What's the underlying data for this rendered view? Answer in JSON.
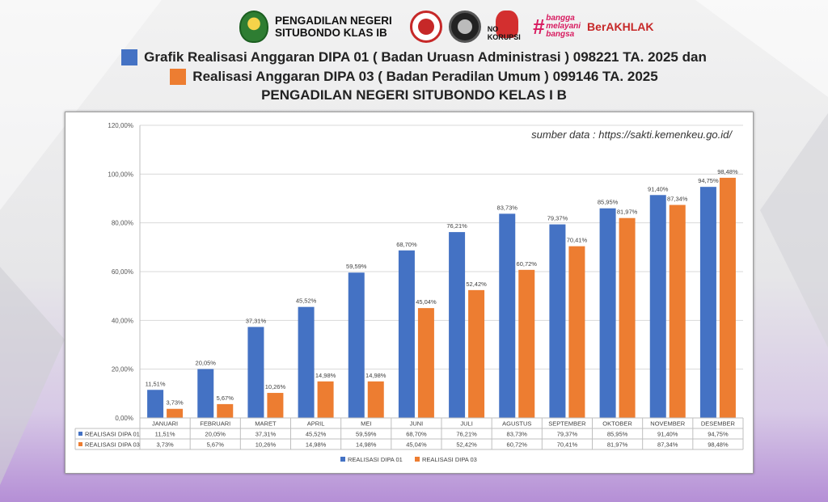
{
  "header": {
    "court_name_line1": "PENGADILAN NEGERI",
    "court_name_line2": "SITUBONDO KLAS IB",
    "badges": [
      "court-emblem",
      "certified-badge",
      "zi-badge",
      "no-korupsi-logo",
      "bangga-melayani-bangsa-logo",
      "berakhlak-logo"
    ],
    "no_korupsi": "NO KORUPSI",
    "bangga_lines": [
      "bangga",
      "melayani",
      "bangsa"
    ],
    "berakhlak": "BerAKHLAK"
  },
  "title": {
    "line1": "Grafik Realisasi Anggaran DIPA 01 ( Badan Uruasn Administrasi ) 098221 TA. 2025 dan",
    "line2": "Realisasi Anggaran DIPA 03 ( Badan Peradilan Umum ) 099146 TA. 2025",
    "line3": "PENGADILAN NEGERI SITUBONDO KELAS I B"
  },
  "source_note": "sumber data  : https://sakti.kemenkeu.go.id/",
  "colors": {
    "dipa01": "#4472C4",
    "dipa03": "#ED7D31"
  },
  "chart_data": {
    "type": "bar",
    "categories": [
      "JANUARI",
      "FEBRUARI",
      "MARET",
      "APRIL",
      "MEI",
      "JUNI",
      "JULI",
      "AGUSTUS",
      "SEPTEMBER",
      "OKTOBER",
      "NOVEMBER",
      "DESEMBER"
    ],
    "series": [
      {
        "name": "REALISASI DIPA 01",
        "values": [
          11.51,
          20.05,
          37.31,
          45.52,
          59.59,
          68.7,
          76.21,
          83.73,
          79.37,
          85.95,
          91.4,
          94.75
        ],
        "labels": [
          "11,51%",
          "20,05%",
          "37,31%",
          "45,52%",
          "59,59%",
          "68,70%",
          "76,21%",
          "83,73%",
          "79,37%",
          "85,95%",
          "91,40%",
          "94,75%"
        ]
      },
      {
        "name": "REALISASI DIPA 03",
        "values": [
          3.73,
          5.67,
          10.26,
          14.98,
          14.98,
          45.04,
          52.42,
          60.72,
          70.41,
          81.97,
          87.34,
          98.48
        ],
        "labels": [
          "3,73%",
          "5,67%",
          "10,26%",
          "14,98%",
          "14,98%",
          "45,04%",
          "52,42%",
          "60,72%",
          "70,41%",
          "81,97%",
          "87,34%",
          "98,48%"
        ]
      }
    ],
    "y_ticks": [
      "0,00%",
      "20,00%",
      "40,00%",
      "60,00%",
      "80,00%",
      "100,00%",
      "120,00%"
    ],
    "ylim": [
      0,
      120
    ],
    "grid": true,
    "legend": "bottom",
    "data_table": true
  }
}
